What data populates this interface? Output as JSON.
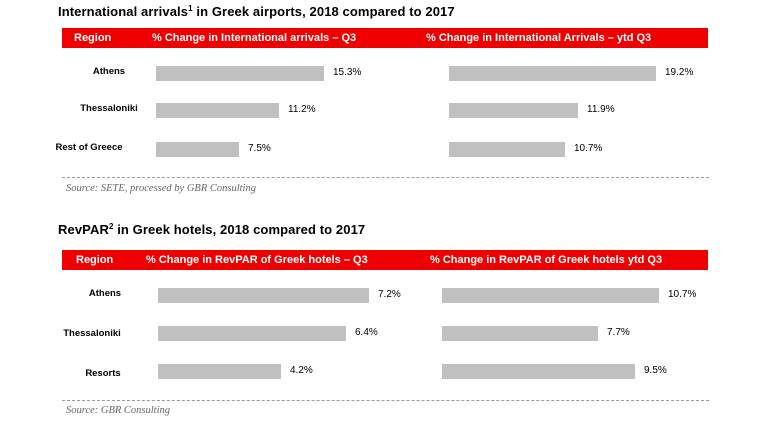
{
  "chart_data": [
    {
      "type": "bar",
      "orientation": "horizontal",
      "title": "International arrivals",
      "title_sup": "1",
      "title_rest": " in Greek airports, 2018 compared to 2017",
      "region_header": "Region",
      "categories": [
        "Athens",
        "Thessaloniki",
        "Rest of Greece"
      ],
      "series": [
        {
          "name": "% Change in International arrivals – Q3",
          "values": [
            15.3,
            11.2,
            7.5
          ]
        },
        {
          "name": "% Change in International Arrivals –  ytd Q3",
          "values": [
            19.2,
            11.9,
            10.7
          ]
        }
      ],
      "source": "Source: SETE, processed by GBR Consulting"
    },
    {
      "type": "bar",
      "orientation": "horizontal",
      "title": "RevPAR",
      "title_sup": "2",
      "title_rest": " in Greek hotels, 2018 compared to 2017",
      "region_header": "Region",
      "categories": [
        "Athens",
        "Thessaloniki",
        "Resorts"
      ],
      "series": [
        {
          "name": "% Change in RevPAR of Greek hotels – Q3",
          "values": [
            7.2,
            6.4,
            4.2
          ]
        },
        {
          "name": "% Change in RevPAR of Greek hotels ytd Q3",
          "values": [
            10.7,
            7.7,
            9.5
          ]
        }
      ],
      "source": "Source: GBR Consulting"
    }
  ]
}
